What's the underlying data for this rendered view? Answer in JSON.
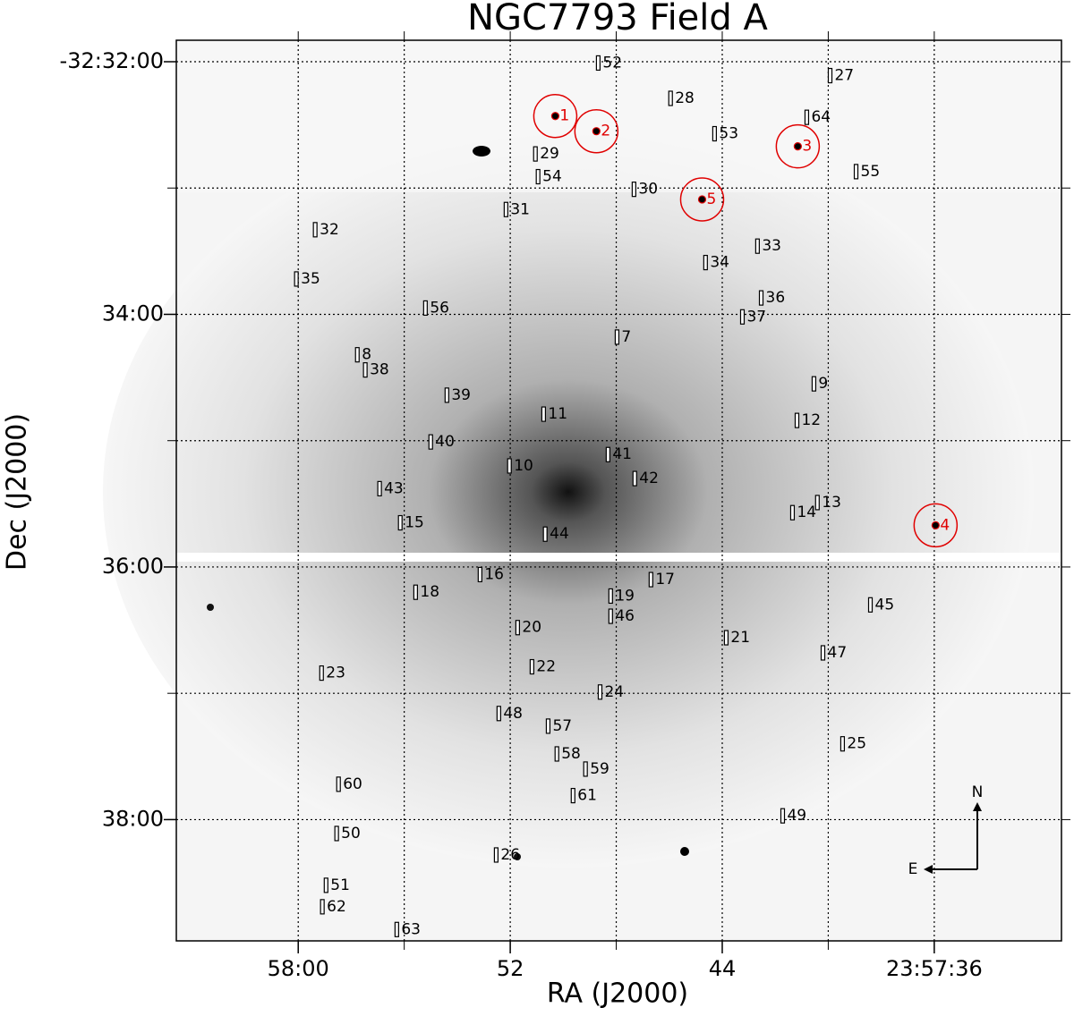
{
  "chart_data": {
    "type": "image",
    "title": "NGC7793 Field A",
    "xlabel": "RA (J2000)",
    "ylabel": "Dec (J2000)",
    "xlim": [
      64.6,
      31.2
    ],
    "ylim": [
      38.96,
      31.83
    ],
    "xticks": [
      {
        "value": 60,
        "label": "58:00"
      },
      52,
      44,
      {
        "value": 36,
        "label": "23:57:36"
      }
    ],
    "yticks": [
      {
        "value": 32,
        "label": "-32:32:00"
      },
      {
        "value": 34,
        "label": "34:00"
      },
      {
        "value": 36,
        "label": "36:00"
      },
      {
        "value": 38,
        "label": "38:00"
      }
    ],
    "xgrid": [
      60,
      56,
      52,
      48,
      44,
      40,
      36
    ],
    "ygrid": [
      32,
      33,
      34,
      35,
      36,
      37,
      38
    ],
    "grid": true,
    "slit_color": "#000000",
    "target_color": "#e00000",
    "slits": [
      {
        "label": "52",
        "x": 48.68,
        "y": 32.01
      },
      {
        "label": "27",
        "x": 39.93,
        "y": 32.11
      },
      {
        "label": "28",
        "x": 45.95,
        "y": 32.29
      },
      {
        "label": "64",
        "x": 40.81,
        "y": 32.44
      },
      {
        "label": "53",
        "x": 44.29,
        "y": 32.57
      },
      {
        "label": "29",
        "x": 51.05,
        "y": 32.73
      },
      {
        "label": "55",
        "x": 38.95,
        "y": 32.87
      },
      {
        "label": "54",
        "x": 50.95,
        "y": 32.91
      },
      {
        "label": "30",
        "x": 47.33,
        "y": 33.01
      },
      {
        "label": "31",
        "x": 52.16,
        "y": 33.17
      },
      {
        "label": "32",
        "x": 59.36,
        "y": 33.33
      },
      {
        "label": "33",
        "x": 42.67,
        "y": 33.46
      },
      {
        "label": "34",
        "x": 44.63,
        "y": 33.59
      },
      {
        "label": "35",
        "x": 60.07,
        "y": 33.72
      },
      {
        "label": "36",
        "x": 42.53,
        "y": 33.87
      },
      {
        "label": "56",
        "x": 55.2,
        "y": 33.95
      },
      {
        "label": "37",
        "x": 43.24,
        "y": 34.02
      },
      {
        "label": "7",
        "x": 47.97,
        "y": 34.18
      },
      {
        "label": "8",
        "x": 57.77,
        "y": 34.32
      },
      {
        "label": "38",
        "x": 57.47,
        "y": 34.44
      },
      {
        "label": "9",
        "x": 40.54,
        "y": 34.55
      },
      {
        "label": "39",
        "x": 54.39,
        "y": 34.64
      },
      {
        "label": "11",
        "x": 50.74,
        "y": 34.79
      },
      {
        "label": "12",
        "x": 41.18,
        "y": 34.84
      },
      {
        "label": "40",
        "x": 55.0,
        "y": 35.01
      },
      {
        "label": "41",
        "x": 48.31,
        "y": 35.11
      },
      {
        "label": "10",
        "x": 52.03,
        "y": 35.2
      },
      {
        "label": "42",
        "x": 47.3,
        "y": 35.3
      },
      {
        "label": "43",
        "x": 56.93,
        "y": 35.38
      },
      {
        "label": "13",
        "x": 40.41,
        "y": 35.49
      },
      {
        "label": "14",
        "x": 41.35,
        "y": 35.57
      },
      {
        "label": "15",
        "x": 56.15,
        "y": 35.65
      },
      {
        "label": "44",
        "x": 50.68,
        "y": 35.74
      },
      {
        "label": "16",
        "x": 53.14,
        "y": 36.06
      },
      {
        "label": "17",
        "x": 46.69,
        "y": 36.1
      },
      {
        "label": "18",
        "x": 55.57,
        "y": 36.2
      },
      {
        "label": "19",
        "x": 48.21,
        "y": 36.23
      },
      {
        "label": "45",
        "x": 38.41,
        "y": 36.3
      },
      {
        "label": "46",
        "x": 48.21,
        "y": 36.39
      },
      {
        "label": "20",
        "x": 51.72,
        "y": 36.48
      },
      {
        "label": "21",
        "x": 43.85,
        "y": 36.56
      },
      {
        "label": "47",
        "x": 40.2,
        "y": 36.68
      },
      {
        "label": "22",
        "x": 51.18,
        "y": 36.79
      },
      {
        "label": "23",
        "x": 59.12,
        "y": 36.84
      },
      {
        "label": "24",
        "x": 48.61,
        "y": 36.99
      },
      {
        "label": "48",
        "x": 52.43,
        "y": 37.16
      },
      {
        "label": "57",
        "x": 50.57,
        "y": 37.26
      },
      {
        "label": "25",
        "x": 39.46,
        "y": 37.4
      },
      {
        "label": "58",
        "x": 50.24,
        "y": 37.48
      },
      {
        "label": "59",
        "x": 49.16,
        "y": 37.6
      },
      {
        "label": "60",
        "x": 58.48,
        "y": 37.72
      },
      {
        "label": "61",
        "x": 49.63,
        "y": 37.81
      },
      {
        "label": "49",
        "x": 41.72,
        "y": 37.97
      },
      {
        "label": "50",
        "x": 58.55,
        "y": 38.11
      },
      {
        "label": "26",
        "x": 52.53,
        "y": 38.28
      },
      {
        "label": "51",
        "x": 58.95,
        "y": 38.52
      },
      {
        "label": "62",
        "x": 59.09,
        "y": 38.69
      },
      {
        "label": "63",
        "x": 56.28,
        "y": 38.87
      }
    ],
    "targets": [
      {
        "label": "1",
        "x": 50.3,
        "y": 32.43
      },
      {
        "label": "2",
        "x": 48.75,
        "y": 32.55
      },
      {
        "label": "3",
        "x": 41.15,
        "y": 32.67
      },
      {
        "label": "5",
        "x": 44.76,
        "y": 33.09
      },
      {
        "label": "4",
        "x": 35.95,
        "y": 35.67
      }
    ],
    "compass": {
      "north": "N",
      "east": "E"
    }
  }
}
